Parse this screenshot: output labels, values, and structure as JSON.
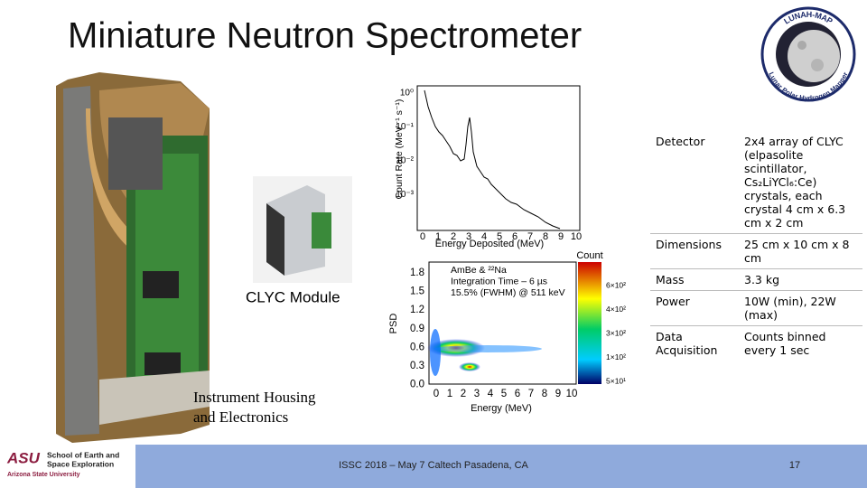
{
  "title": "Miniature Neutron Spectrometer",
  "logo": {
    "top": "LUNAH-MAP",
    "bottom": "Lunar Polar Hydrogen Mapper"
  },
  "captions": {
    "module": "CLYC Module",
    "housing": [
      "Instrument Housing",
      "and Electronics"
    ]
  },
  "spectrum_plot": {
    "y_label": "Count Rate (MeV⁻¹ s⁻¹)",
    "x_label": "Energy Deposited (MeV)",
    "x_ticks": [
      0,
      1,
      2,
      3,
      4,
      5,
      6,
      7,
      8,
      9,
      10
    ],
    "y_ticks": [
      "10⁰",
      "10⁻¹",
      "10⁻²",
      "10⁻³"
    ]
  },
  "psd_plot": {
    "y_label": "PSD",
    "x_label": "Energy (MeV)",
    "x_ticks": [
      0,
      1,
      2,
      3,
      4,
      5,
      6,
      7,
      8,
      9,
      10
    ],
    "y_ticks": [
      "1.8",
      "1.5",
      "1.2",
      "0.9",
      "0.6",
      "0.3",
      "0.0"
    ],
    "annotation": [
      "AmBe & ²²Na",
      "Integration Time – 6 µs",
      "15.5% (FWHM) @ 511 keV"
    ],
    "colorbar_title": "Count",
    "colorbar_ticks": [
      "6×10²",
      "4×10²",
      "3×10²",
      "1×10²",
      "5×10¹"
    ]
  },
  "table": {
    "rows": [
      [
        "Detector",
        "2x4 array of CLYC (elpasolite scintillator, Cs₂LiYCl₆:Ce) crystals, each crystal 4 cm x 6.3 cm x 2 cm"
      ],
      [
        "Dimensions",
        "25 cm x 10 cm x 8 cm"
      ],
      [
        "Mass",
        "3.3 kg"
      ],
      [
        "Power",
        "10W (min), 22W (max)"
      ],
      [
        "Data Acquisition",
        "Counts binned every 1 sec"
      ]
    ]
  },
  "footer": {
    "org_logo": "ASU",
    "org": [
      "School of Earth and",
      "Space Exploration"
    ],
    "university": "Arizona State University",
    "event": "ISSC 2018 – May 7 Caltech Pasadena, CA",
    "page": "17"
  }
}
